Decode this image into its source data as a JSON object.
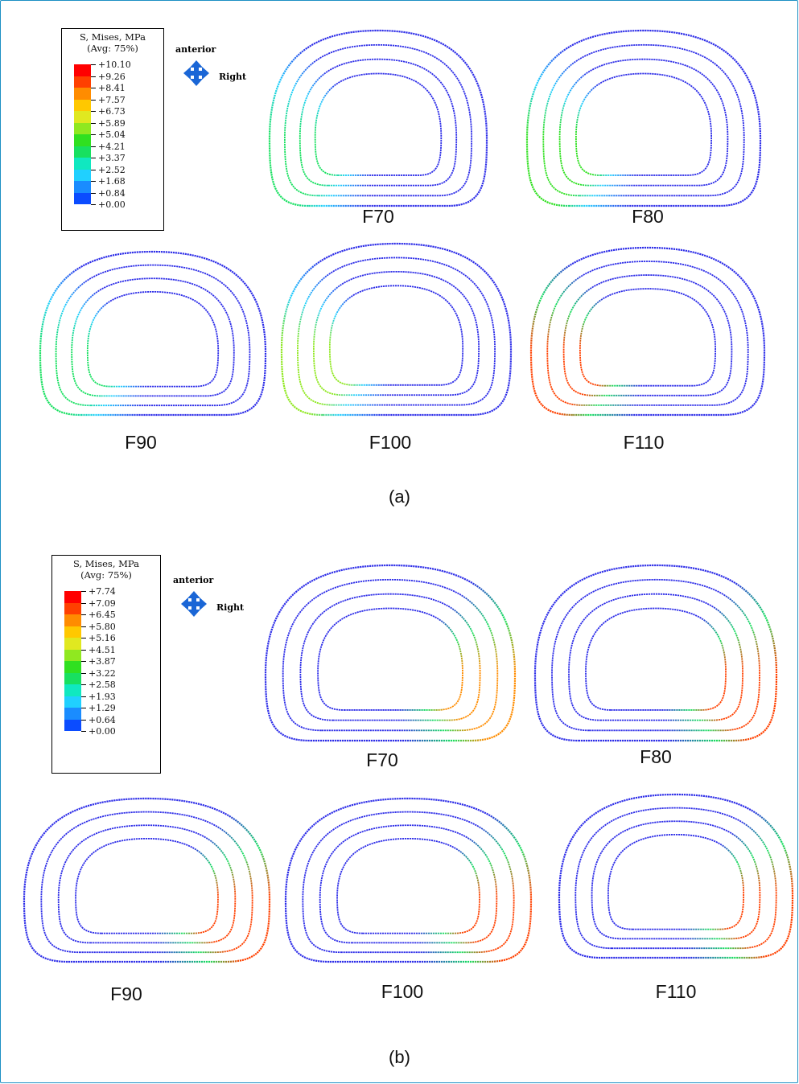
{
  "orientation": {
    "up_label": "anterior",
    "right_label": "Right"
  },
  "palette": [
    "#0000ff",
    "#0b4cff",
    "#1a8cff",
    "#20d0ff",
    "#10e8c0",
    "#18e060",
    "#30e020",
    "#90e820",
    "#e0e820",
    "#ffc800",
    "#ff8c00",
    "#ff4000",
    "#ff0000"
  ],
  "ring_color": "#2e2ee8",
  "panels": [
    {
      "caption": "(a)",
      "legend": {
        "title_line1": "S, Mises, MPa",
        "title_line2": "(Avg: 75%)",
        "ticks": [
          "+10.10",
          "+9.26",
          "+8.41",
          "+7.57",
          "+6.73",
          "+5.89",
          "+5.04",
          "+4.21",
          "+3.37",
          "+2.52",
          "+1.68",
          "+0.84",
          "+0.00"
        ]
      },
      "sections": [
        {
          "label": "F70",
          "hot_side": "left",
          "peak_level": 5
        },
        {
          "label": "F80",
          "hot_side": "left",
          "peak_level": 6
        },
        {
          "label": "F90",
          "hot_side": "left",
          "peak_level": 5
        },
        {
          "label": "F100",
          "hot_side": "left",
          "peak_level": 7
        },
        {
          "label": "F110",
          "hot_side": "left",
          "peak_level": 11
        }
      ]
    },
    {
      "caption": "(b)",
      "legend": {
        "title_line1": "S, Mises, MPa",
        "title_line2": "(Avg: 75%)",
        "ticks": [
          "+7.74",
          "+7.09",
          "+6.45",
          "+5.80",
          "+5.16",
          "+4.51",
          "+3.87",
          "+3.22",
          "+2.58",
          "+1.93",
          "+1.29",
          "+0.64",
          "+0.00"
        ]
      },
      "sections": [
        {
          "label": "F70",
          "hot_side": "right",
          "peak_level": 10
        },
        {
          "label": "F80",
          "hot_side": "right",
          "peak_level": 11
        },
        {
          "label": "F90",
          "hot_side": "right",
          "peak_level": 11
        },
        {
          "label": "F100",
          "hot_side": "right",
          "peak_level": 11
        },
        {
          "label": "F110",
          "hot_side": "right",
          "peak_level": 11
        }
      ]
    }
  ]
}
